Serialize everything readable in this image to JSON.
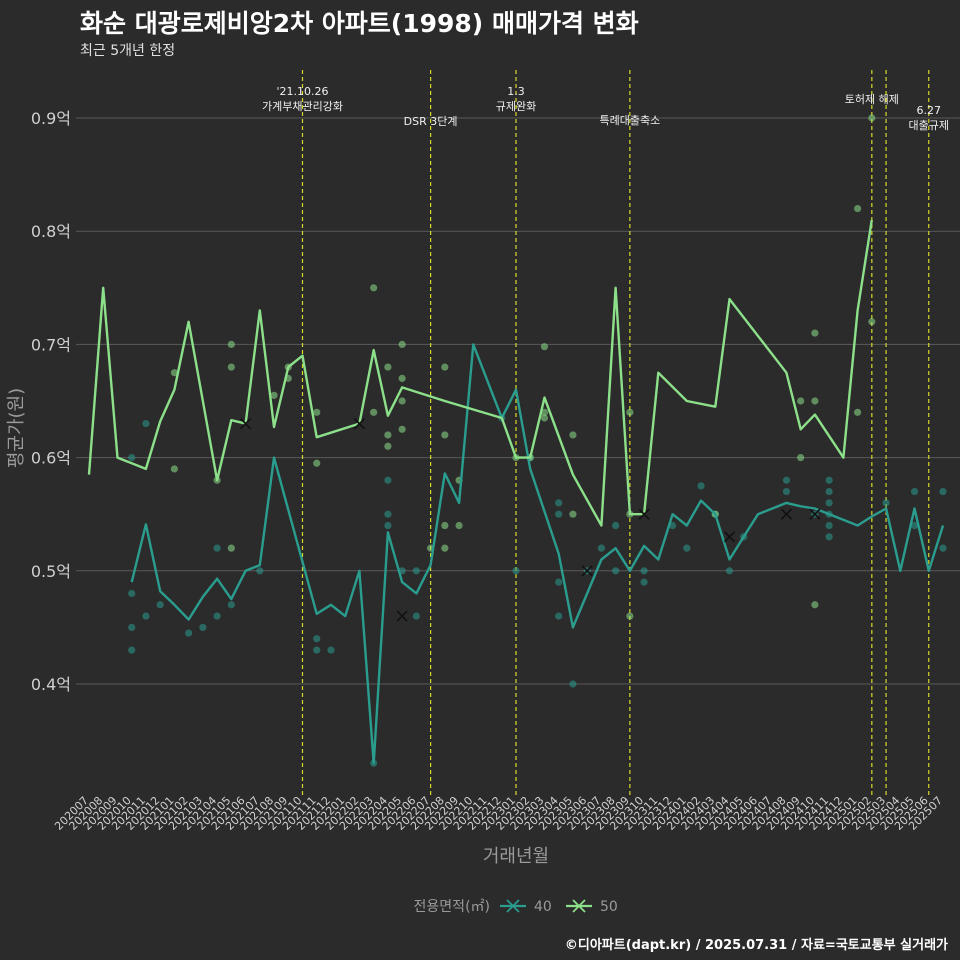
{
  "title": "화순 대광로제비앙2차 아파트(1998) 매매가격 변화",
  "subtitle": "최근 5개년 한정",
  "caption": "©디아파트(dapt.kr) / 2025.07.31 / 자료=국토교통부 실거래가",
  "colors": {
    "background": "#2b2b2b",
    "series_40": "#2a9d8f",
    "series_50": "#8de08a",
    "event_line": "#d9d92b",
    "grid": "#5a5a5a"
  },
  "chart_data": {
    "type": "line",
    "xlabel": "거래년월",
    "ylabel": "평균가(원)",
    "ylim": [
      0.3,
      0.95
    ],
    "yticks": [
      0.4,
      0.5,
      0.6,
      0.7,
      0.8,
      0.9
    ],
    "ytick_labels": [
      "0.4억",
      "0.5억",
      "0.6억",
      "0.7억",
      "0.8억",
      "0.9억"
    ],
    "grid": true,
    "legend_title": "전용면적(㎡)",
    "legend_position": "bottom",
    "categories": [
      "202007",
      "202008",
      "202009",
      "202010",
      "202011",
      "202012",
      "202101",
      "202102",
      "202103",
      "202104",
      "202105",
      "202106",
      "202107",
      "202108",
      "202109",
      "202110",
      "202111",
      "202112",
      "202201",
      "202202",
      "202203",
      "202204",
      "202205",
      "202206",
      "202207",
      "202208",
      "202209",
      "202210",
      "202211",
      "202212",
      "202301",
      "202302",
      "202303",
      "202304",
      "202305",
      "202306",
      "202307",
      "202308",
      "202309",
      "202310",
      "202311",
      "202312",
      "202401",
      "202402",
      "202403",
      "202404",
      "202405",
      "202406",
      "202407",
      "202408",
      "202409",
      "202410",
      "202411",
      "202412",
      "202501",
      "202502",
      "202503",
      "202504",
      "202505",
      "202506",
      "202507"
    ],
    "series": [
      {
        "name": "40",
        "color": "#2a9d8f",
        "values": [
          null,
          null,
          null,
          0.49,
          0.541,
          0.482,
          0.47,
          0.457,
          0.477,
          0.493,
          0.475,
          0.5,
          0.505,
          0.6,
          null,
          null,
          0.462,
          0.47,
          0.46,
          0.5,
          0.33,
          0.534,
          0.49,
          0.48,
          0.505,
          0.586,
          0.56,
          0.7,
          null,
          0.635,
          0.66,
          0.59,
          null,
          0.515,
          0.45,
          null,
          0.51,
          0.52,
          0.5,
          0.522,
          0.51,
          0.55,
          0.54,
          0.562,
          0.55,
          0.51,
          0.53,
          0.55,
          null,
          0.56,
          0.557,
          0.555,
          null,
          null,
          0.54,
          0.548,
          0.555,
          0.5,
          0.555,
          0.5,
          0.54
        ],
        "points": [
          [
            "202010",
            0.48
          ],
          [
            "202010",
            0.45
          ],
          [
            "202010",
            0.43
          ],
          [
            "202010",
            0.6
          ],
          [
            "202011",
            0.63
          ],
          [
            "202011",
            0.46
          ],
          [
            "202012",
            0.47
          ],
          [
            "202102",
            0.445
          ],
          [
            "202103",
            0.45
          ],
          [
            "202104",
            0.46
          ],
          [
            "202104",
            0.52
          ],
          [
            "202105",
            0.47
          ],
          [
            "202107",
            0.5
          ],
          [
            "202111",
            0.44
          ],
          [
            "202111",
            0.43
          ],
          [
            "202112",
            0.43
          ],
          [
            "202203",
            0.33
          ],
          [
            "202204",
            0.58
          ],
          [
            "202204",
            0.55
          ],
          [
            "202204",
            0.54
          ],
          [
            "202205",
            0.5
          ],
          [
            "202206",
            0.5
          ],
          [
            "202206",
            0.46
          ],
          [
            "202212",
            0.635
          ],
          [
            "202301",
            0.5
          ],
          [
            "202302",
            0.6
          ],
          [
            "202304",
            0.56
          ],
          [
            "202304",
            0.55
          ],
          [
            "202304",
            0.49
          ],
          [
            "202304",
            0.46
          ],
          [
            "202305",
            0.4
          ],
          [
            "202306",
            0.5
          ],
          [
            "202307",
            0.52
          ],
          [
            "202308",
            0.5
          ],
          [
            "202308",
            0.54
          ],
          [
            "202310",
            0.5
          ],
          [
            "202310",
            0.49
          ],
          [
            "202312",
            0.54
          ],
          [
            "202401",
            0.52
          ],
          [
            "202402",
            0.575
          ],
          [
            "202403",
            0.55
          ],
          [
            "202404",
            0.5
          ],
          [
            "202405",
            0.53
          ],
          [
            "202408",
            0.58
          ],
          [
            "202408",
            0.57
          ],
          [
            "202410",
            0.55
          ],
          [
            "202411",
            0.58
          ],
          [
            "202411",
            0.57
          ],
          [
            "202411",
            0.56
          ],
          [
            "202411",
            0.55
          ],
          [
            "202411",
            0.54
          ],
          [
            "202411",
            0.53
          ],
          [
            "202503",
            0.56
          ],
          [
            "202505",
            0.57
          ],
          [
            "202505",
            0.54
          ],
          [
            "202507",
            0.57
          ],
          [
            "202507",
            0.52
          ]
        ],
        "cross_markers": [
          [
            "202205",
            0.46
          ],
          [
            "202306",
            0.5
          ],
          [
            "202404",
            0.53
          ],
          [
            "202408",
            0.55
          ],
          [
            "202410",
            0.55
          ]
        ]
      },
      {
        "name": "50",
        "color": "#8de08a",
        "values": [
          0.585,
          0.75,
          0.6,
          null,
          0.59,
          0.632,
          0.66,
          0.72,
          null,
          0.58,
          0.633,
          0.63,
          0.73,
          0.627,
          0.68,
          0.69,
          0.618,
          null,
          null,
          0.63,
          0.695,
          0.637,
          0.662,
          null,
          null,
          0.65,
          null,
          null,
          null,
          0.635,
          0.6,
          0.6,
          0.653,
          null,
          0.585,
          null,
          0.54,
          0.75,
          0.55,
          0.55,
          0.675,
          null,
          0.65,
          null,
          0.645,
          0.74,
          null,
          null,
          null,
          0.675,
          0.625,
          0.638,
          null,
          0.6,
          0.73,
          0.81,
          null,
          null,
          null,
          null,
          null
        ],
        "points": [
          [
            "202101",
            0.59
          ],
          [
            "202101",
            0.675
          ],
          [
            "202104",
            0.58
          ],
          [
            "202105",
            0.52
          ],
          [
            "202105",
            0.7
          ],
          [
            "202105",
            0.68
          ],
          [
            "202108",
            0.655
          ],
          [
            "202109",
            0.67
          ],
          [
            "202109",
            0.68
          ],
          [
            "202111",
            0.64
          ],
          [
            "202111",
            0.595
          ],
          [
            "202203",
            0.75
          ],
          [
            "202203",
            0.64
          ],
          [
            "202204",
            0.68
          ],
          [
            "202204",
            0.62
          ],
          [
            "202204",
            0.61
          ],
          [
            "202205",
            0.7
          ],
          [
            "202205",
            0.67
          ],
          [
            "202205",
            0.65
          ],
          [
            "202205",
            0.625
          ],
          [
            "202207",
            0.52
          ],
          [
            "202208",
            0.68
          ],
          [
            "202208",
            0.62
          ],
          [
            "202208",
            0.54
          ],
          [
            "202208",
            0.52
          ],
          [
            "202209",
            0.58
          ],
          [
            "202209",
            0.54
          ],
          [
            "202301",
            0.6
          ],
          [
            "202302",
            0.6
          ],
          [
            "202303",
            0.698
          ],
          [
            "202303",
            0.64
          ],
          [
            "202303",
            0.635
          ],
          [
            "202305",
            0.55
          ],
          [
            "202305",
            0.62
          ],
          [
            "202309",
            0.46
          ],
          [
            "202309",
            0.64
          ],
          [
            "202309",
            0.55
          ],
          [
            "202403",
            0.55
          ],
          [
            "202409",
            0.65
          ],
          [
            "202409",
            0.6
          ],
          [
            "202410",
            0.71
          ],
          [
            "202410",
            0.65
          ],
          [
            "202410",
            0.47
          ],
          [
            "202501",
            0.82
          ],
          [
            "202501",
            0.64
          ],
          [
            "202502",
            0.9
          ],
          [
            "202502",
            0.72
          ]
        ],
        "cross_markers": [
          [
            "202106",
            0.63
          ],
          [
            "202202",
            0.63
          ],
          [
            "202310",
            0.55
          ]
        ]
      }
    ],
    "events": [
      {
        "month": "202110",
        "label": "'21.10.26 가계부채관리강화"
      },
      {
        "month": "202207",
        "label": "DSR 3단계"
      },
      {
        "month": "202301",
        "label": "1.3 규제완화"
      },
      {
        "month": "202309",
        "label": "특례대출축소"
      },
      {
        "month": "202502",
        "label": "토허제 해제"
      },
      {
        "month": "202503",
        "label": ""
      },
      {
        "month": "202506",
        "label": "6.27 대출규제"
      }
    ]
  }
}
